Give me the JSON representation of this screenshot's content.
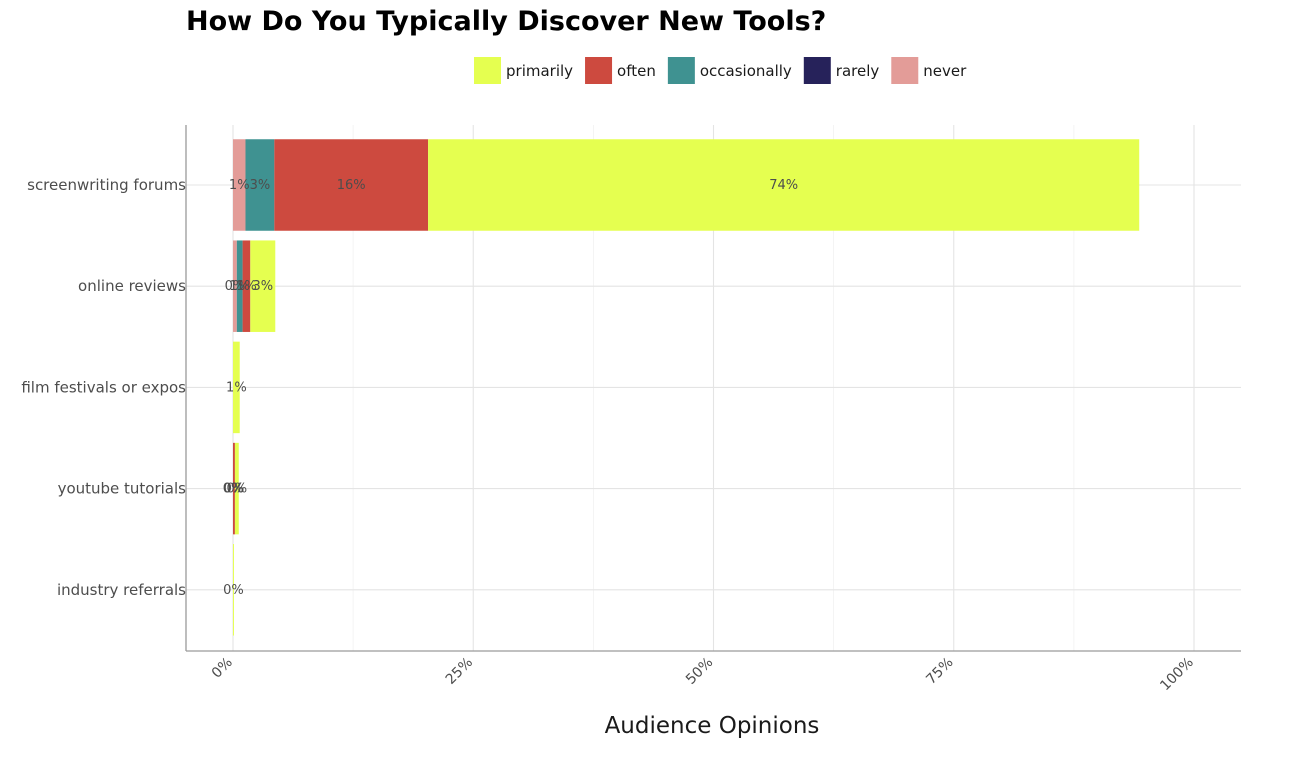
{
  "chart_data": {
    "type": "bar",
    "orientation": "horizontal",
    "stacked": true,
    "title": "How Do You Typically Discover New Tools?",
    "xlabel": "Audience Opinions",
    "ylabel": "",
    "xlim": [
      0,
      100
    ],
    "x_ticks": [
      "0%",
      "25%",
      "50%",
      "75%",
      "100%"
    ],
    "grid": true,
    "legend_position": "top",
    "categories": [
      "screenwriting forums",
      "online reviews",
      "film festivals or expos",
      "youtube tutorials",
      "industry referrals"
    ],
    "series": [
      {
        "name": "never",
        "color": "#e39c98",
        "values": [
          1.3,
          0.4,
          0,
          0,
          0
        ],
        "labels": [
          "1%",
          "0%",
          "",
          "0%",
          ""
        ]
      },
      {
        "name": "rarely",
        "color": "#26225a",
        "values": [
          0,
          0,
          0,
          0,
          0
        ],
        "labels": [
          "",
          "",
          "",
          "",
          ""
        ]
      },
      {
        "name": "occasionally",
        "color": "#3f9291",
        "values": [
          3,
          0.6,
          0,
          0,
          0
        ],
        "labels": [
          "3%",
          "1%",
          "",
          "",
          ""
        ]
      },
      {
        "name": "often",
        "color": "#cd4a3f",
        "values": [
          16,
          0.8,
          0,
          0.2,
          0
        ],
        "labels": [
          "16%",
          "1%",
          "",
          "0%",
          ""
        ]
      },
      {
        "name": "primarily",
        "color": "#e5ff50",
        "values": [
          74,
          2.6,
          0.7,
          0.4,
          0.1
        ],
        "labels": [
          "74%",
          "3%",
          "1%",
          "0%",
          "0%"
        ]
      }
    ],
    "legend_order": [
      "primarily",
      "often",
      "occasionally",
      "rarely",
      "never"
    ]
  }
}
